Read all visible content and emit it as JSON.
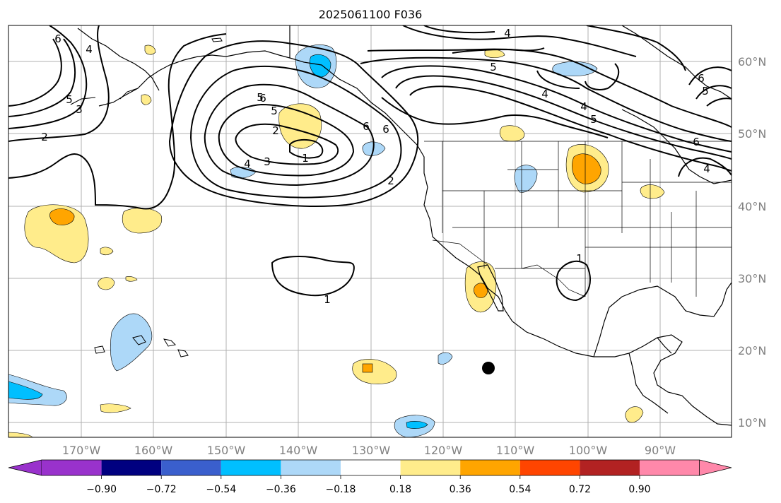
{
  "title": "2025061100 F036",
  "lon_labels": [
    "170°W",
    "160°W",
    "150°W",
    "140°W",
    "130°W",
    "120°W",
    "110°W",
    "100°W",
    "90°W"
  ],
  "lat_labels": [
    "60°N",
    "50°N",
    "40°N",
    "30°N",
    "20°N",
    "10°N"
  ],
  "colorbar": {
    "tick_labels": [
      "−0.90",
      "−0.72",
      "−0.54",
      "−0.36",
      "−0.18",
      "0.18",
      "0.36",
      "0.54",
      "0.72",
      "0.90"
    ],
    "colors": [
      "#9932cc",
      "#000080",
      "#3a5fcd",
      "#00bfff",
      "#add8f8",
      "#ffffff",
      "#ffec8b",
      "#ffa500",
      "#ff4500",
      "#b22222",
      "#ff88aa"
    ]
  },
  "contour_labels": [
    "6",
    "4",
    "5",
    "3",
    "2",
    "4",
    "5",
    "6",
    "5",
    "4",
    "5",
    "6",
    "5",
    "6",
    "4",
    "6",
    "5",
    "2",
    "3",
    "4",
    "1",
    "6",
    "4",
    "2",
    "1",
    "1"
  ]
}
